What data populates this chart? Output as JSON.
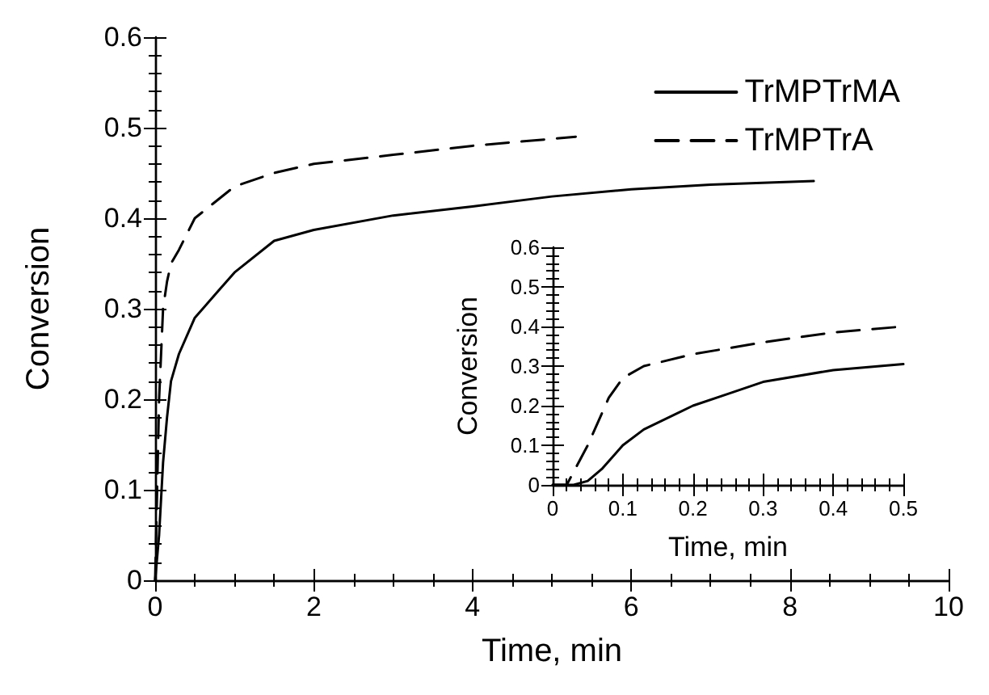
{
  "chart_data": [
    {
      "type": "line",
      "xlabel": "Time, min",
      "ylabel": "Conversion",
      "xlim": [
        0,
        10
      ],
      "xticks": [
        0,
        2,
        4,
        6,
        8,
        10
      ],
      "ylim": [
        0,
        0.6
      ],
      "yticks": [
        0,
        0.1,
        0.2,
        0.3,
        0.4,
        0.5,
        0.6
      ],
      "grid": false,
      "legend": "top right",
      "marker": "none",
      "series": [
        {
          "name": "TrMPTrMA",
          "color": "#000000",
          "line_style": "solid",
          "x": [
            0,
            0.05,
            0.1,
            0.15,
            0.2,
            0.3,
            0.5,
            0.8,
            1,
            1.5,
            2,
            3,
            4,
            5,
            6,
            7,
            8.3
          ],
          "values": [
            0,
            0.05,
            0.13,
            0.18,
            0.22,
            0.25,
            0.29,
            0.32,
            0.34,
            0.375,
            0.387,
            0.403,
            0.413,
            0.424,
            0.432,
            0.437,
            0.441
          ]
        },
        {
          "name": "TrMPTrA",
          "color": "#000000",
          "line_style": "dashed",
          "x": [
            0,
            0.05,
            0.1,
            0.15,
            0.2,
            0.3,
            0.5,
            1,
            1.5,
            2,
            3,
            4,
            5.3
          ],
          "values": [
            0,
            0.2,
            0.3,
            0.33,
            0.35,
            0.365,
            0.4,
            0.435,
            0.45,
            0.46,
            0.47,
            0.48,
            0.49
          ]
        }
      ]
    },
    {
      "type": "line",
      "xlabel": "Time, min",
      "ylabel": "Conversion",
      "xlim": [
        0,
        0.5
      ],
      "xticks": [
        0,
        0.1,
        0.2,
        0.3,
        0.4,
        0.5
      ],
      "ylim": [
        0,
        0.6
      ],
      "yticks": [
        0,
        0.1,
        0.2,
        0.3,
        0.4,
        0.5,
        0.6
      ],
      "grid": false,
      "legend": false,
      "marker": "none",
      "series": [
        {
          "color": "#000000",
          "line_style": "solid",
          "x": [
            0,
            0.03,
            0.05,
            0.07,
            0.1,
            0.13,
            0.2,
            0.25,
            0.3,
            0.4,
            0.5
          ],
          "values": [
            0,
            0,
            0.01,
            0.04,
            0.1,
            0.14,
            0.2,
            0.23,
            0.26,
            0.29,
            0.305
          ]
        },
        {
          "color": "#000000",
          "line_style": "dashed",
          "x": [
            0,
            0.02,
            0.05,
            0.08,
            0.1,
            0.13,
            0.2,
            0.3,
            0.4,
            0.5
          ],
          "values": [
            0,
            0,
            0.1,
            0.22,
            0.27,
            0.3,
            0.33,
            0.36,
            0.385,
            0.4
          ]
        }
      ]
    }
  ]
}
